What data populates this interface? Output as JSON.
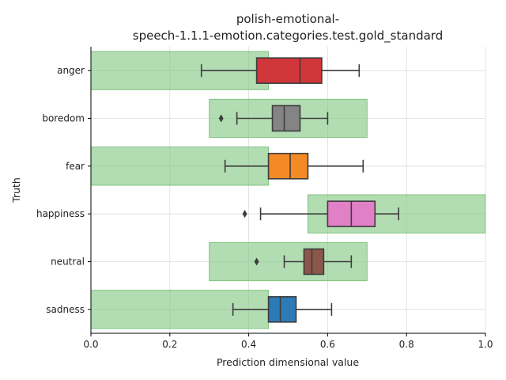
{
  "chart_data": {
    "type": "boxplot",
    "title_lines": [
      "polish-emotional-",
      "speech-1.1.1-emotion.categories.test.gold_standard"
    ],
    "xlabel": "Prediction dimensional value",
    "ylabel": "Truth",
    "xlim": [
      0,
      1
    ],
    "x_ticks": [
      0,
      0.2,
      0.4,
      0.6,
      0.8,
      1
    ],
    "x_tick_labels": [
      "0.0",
      "0.2",
      "0.4",
      "0.6",
      "0.8",
      "1.0"
    ],
    "grid": true,
    "categories": [
      "anger",
      "boredom",
      "fear",
      "happiness",
      "neutral",
      "sadness"
    ],
    "range_color": "#7fc47f",
    "ranges": [
      {
        "category": "anger",
        "start": 0.0,
        "end": 0.45
      },
      {
        "category": "boredom",
        "start": 0.3,
        "end": 0.7
      },
      {
        "category": "fear",
        "start": 0.0,
        "end": 0.45
      },
      {
        "category": "happiness",
        "start": 0.55,
        "end": 1.0
      },
      {
        "category": "neutral",
        "start": 0.3,
        "end": 0.7
      },
      {
        "category": "sadness",
        "start": 0.0,
        "end": 0.45
      }
    ],
    "boxes": [
      {
        "category": "anger",
        "whisker_low": 0.28,
        "q1": 0.42,
        "median": 0.53,
        "q3": 0.585,
        "whisker_high": 0.68,
        "outliers": [],
        "color": "#d0363a"
      },
      {
        "category": "boredom",
        "whisker_low": 0.37,
        "q1": 0.46,
        "median": 0.49,
        "q3": 0.53,
        "whisker_high": 0.6,
        "outliers": [
          0.33
        ],
        "color": "#848484"
      },
      {
        "category": "fear",
        "whisker_low": 0.34,
        "q1": 0.45,
        "median": 0.505,
        "q3": 0.55,
        "whisker_high": 0.69,
        "outliers": [],
        "color": "#f38a24"
      },
      {
        "category": "happiness",
        "whisker_low": 0.43,
        "q1": 0.6,
        "median": 0.66,
        "q3": 0.72,
        "whisker_high": 0.78,
        "outliers": [
          0.39
        ],
        "color": "#e17fc7"
      },
      {
        "category": "neutral",
        "whisker_low": 0.49,
        "q1": 0.54,
        "median": 0.56,
        "q3": 0.59,
        "whisker_high": 0.66,
        "outliers": [
          0.42
        ],
        "color": "#8c564b"
      },
      {
        "category": "sadness",
        "whisker_low": 0.36,
        "q1": 0.45,
        "median": 0.48,
        "q3": 0.52,
        "whisker_high": 0.61,
        "outliers": [],
        "color": "#2d7bb6"
      }
    ]
  }
}
